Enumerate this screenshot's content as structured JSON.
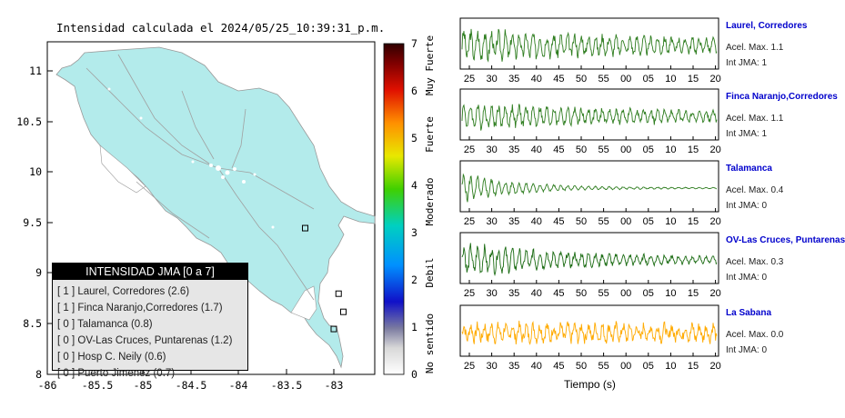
{
  "map": {
    "title": "Intensidad calculada el 2024/05/25_10:39:31_p.m.",
    "x_ticks": [
      "-86",
      "-85.5",
      "-85",
      "-84.5",
      "-84",
      "-83.5",
      "-83"
    ],
    "y_ticks": [
      "11",
      "10.5",
      "10",
      "9.5",
      "9",
      "8.5",
      "8"
    ],
    "land_color": "#b3ebeb",
    "stations": [
      {
        "lat": 8.8,
        "lon": -82.95
      },
      {
        "lat": 8.62,
        "lon": -82.9
      },
      {
        "lat": 8.45,
        "lon": -83.0
      },
      {
        "lat": 9.45,
        "lon": -83.3
      }
    ]
  },
  "colorbar": {
    "ticks": [
      "0",
      "1",
      "2",
      "3",
      "4",
      "5",
      "6",
      "7"
    ],
    "category_labels": [
      "No sentido",
      "Debil",
      "Moderado",
      "Fuerte",
      "Muy Fuerte"
    ]
  },
  "legend": {
    "title": "INTENSIDAD JMA [0 a 7]",
    "items": [
      "[ 1 ]  Laurel, Corredores (2.6)",
      "[ 1 ]  Finca Naranjo,Corredores (1.7)",
      "[ 0 ]  Talamanca (0.8)",
      "[ 0 ]  OV-Las Cruces, Puntarenas (1.2)",
      "[ 0 ]  Hosp C. Neily (0.6)",
      "[ 0 ]  Puerto Jimenez (0.7)"
    ]
  },
  "chart_data": [
    {
      "type": "line",
      "name": "Laurel, Corredores",
      "accel_label": "Acel. Max. 1.1",
      "int_label": "Int JMA: 1",
      "color": "#2e7d1f",
      "x_ticks": [
        "25",
        "30",
        "35",
        "40",
        "45",
        "50",
        "55",
        "00",
        "05",
        "10",
        "15",
        "20"
      ],
      "amplitude": 0.85,
      "decay": 0.9,
      "noise": 0.25
    },
    {
      "type": "line",
      "name": "Finca Naranjo,Corredores",
      "accel_label": "Acel. Max. 1.1",
      "int_label": "Int JMA: 1",
      "color": "#2e7d1f",
      "x_ticks": [
        "25",
        "30",
        "35",
        "40",
        "45",
        "50",
        "55",
        "00",
        "05",
        "10",
        "15",
        "20"
      ],
      "amplitude": 0.7,
      "decay": 0.9,
      "noise": 0.2
    },
    {
      "type": "line",
      "name": "Talamanca",
      "accel_label": "Acel. Max. 0.4",
      "int_label": "Int JMA: 0",
      "color": "#2e7d1f",
      "x_ticks": [
        "25",
        "30",
        "35",
        "40",
        "45",
        "50",
        "55",
        "00",
        "05",
        "10",
        "15",
        "20"
      ],
      "amplitude": 0.9,
      "decay": 4.5,
      "noise": 0.08
    },
    {
      "type": "line",
      "name": "OV-Las Cruces, Puntarenas",
      "accel_label": "Acel. Max. 0.3",
      "int_label": "Int JMA: 0",
      "color": "#1a6b12",
      "x_ticks": [
        "25",
        "30",
        "35",
        "40",
        "45",
        "50",
        "55",
        "00",
        "05",
        "10",
        "15",
        "20"
      ],
      "amplitude": 0.9,
      "decay": 1.8,
      "noise": 0.18
    },
    {
      "type": "line",
      "name": "La Sabana",
      "accel_label": "Acel. Max. 0.0",
      "int_label": "Int JMA: 0",
      "color": "#ffaa00",
      "x_ticks": [
        "25",
        "30",
        "35",
        "40",
        "45",
        "50",
        "55",
        "00",
        "05",
        "10",
        "15",
        "20"
      ],
      "amplitude": 0.5,
      "decay": 0.0,
      "noise": 0.55
    }
  ],
  "waveforms_xlabel": "Tiempo (s)"
}
